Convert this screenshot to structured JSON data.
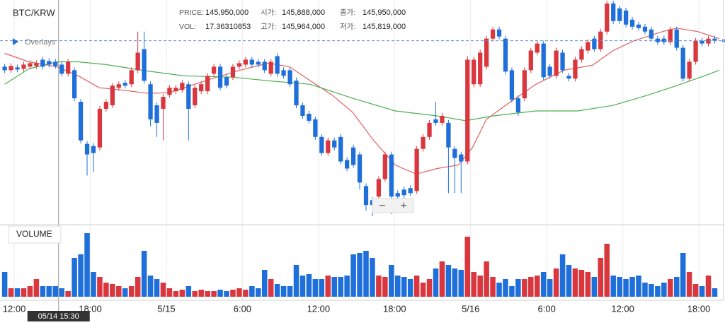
{
  "chart_data": {
    "type": "candlestick",
    "title": "BTC/KRW",
    "legend_label": "Overlays",
    "volume_label": "VOLUME",
    "zoom_labels": [
      "−",
      "+"
    ],
    "info": [
      {
        "label": "PRICE:",
        "value": "145,950,000"
      },
      {
        "label": "시가:",
        "value": "145,888,000"
      },
      {
        "label": "종가:",
        "value": "145,950,000"
      },
      {
        "label": "VOL:",
        "value": "17.36310853"
      },
      {
        "label": "고가:",
        "value": "145,964,000"
      },
      {
        "label": "저가:",
        "value": "145,819,000"
      }
    ],
    "up_color": "#d9363e",
    "down_color": "#1e6fd9",
    "xlim": [
      -0.74,
      113.4
    ],
    "ylim": [
      0,
      320
    ],
    "volume_ylim": [
      0,
      95
    ],
    "xticks": [
      {
        "value": 1.5,
        "label": "12:00"
      },
      {
        "value": 13.5,
        "label": "18:00"
      },
      {
        "value": 25.5,
        "label": "5/15"
      },
      {
        "value": 37.5,
        "label": "6:00"
      },
      {
        "value": 49.5,
        "label": "12:00"
      },
      {
        "value": 61.5,
        "label": "18:00"
      },
      {
        "value": 73.5,
        "label": "5/16"
      },
      {
        "value": 85.5,
        "label": "6:00"
      },
      {
        "value": 97.5,
        "label": "12:00"
      },
      {
        "value": 109.5,
        "label": "18:00"
      }
    ],
    "crosshair": {
      "value": 8.5,
      "label": "05/14 15:30"
    },
    "open": [
      225,
      220,
      224,
      222,
      225,
      226,
      235,
      233,
      232,
      228,
      215,
      220,
      175,
      115,
      112,
      110,
      165,
      170,
      195,
      202,
      200,
      220,
      250,
      200,
      170,
      165,
      185,
      190,
      192,
      200,
      170,
      190,
      190,
      215,
      225,
      210,
      210,
      225,
      228,
      235,
      232,
      232,
      215,
      240,
      220,
      220,
      205,
      170,
      158,
      150,
      125,
      102,
      120,
      125,
      92,
      110,
      100,
      55,
      35,
      40,
      65,
      100,
      45,
      50,
      52,
      48,
      108,
      125,
      150,
      145,
      145,
      108,
      100,
      90,
      200,
      200,
      225,
      265,
      278,
      265,
      220,
      180,
      180,
      220,
      245,
      258,
      225,
      212,
      245,
      212,
      208,
      235,
      248,
      265,
      250,
      275,
      315,
      308,
      305,
      292,
      285,
      282,
      278,
      265,
      265,
      260,
      278,
      252,
      208,
      232,
      262,
      258,
      265
    ],
    "high": [
      229,
      230,
      228,
      232,
      234,
      234,
      239,
      237,
      236,
      232,
      236,
      224,
      179,
      119,
      116,
      169,
      179,
      202,
      204,
      206,
      224,
      275,
      275,
      204,
      174,
      186,
      199,
      199,
      206,
      204,
      199,
      204,
      216,
      229,
      229,
      214,
      229,
      234,
      239,
      239,
      236,
      236,
      236,
      244,
      224,
      224,
      209,
      174,
      162,
      154,
      129,
      124,
      124,
      129,
      96,
      114,
      104,
      59,
      39,
      69,
      104,
      104,
      49,
      54,
      56,
      112,
      129,
      149,
      175,
      159,
      149,
      112,
      104,
      240,
      239,
      249,
      269,
      282,
      282,
      269,
      224,
      184,
      224,
      252,
      262,
      262,
      229,
      252,
      249,
      216,
      239,
      254,
      264,
      269,
      279,
      319,
      319,
      312,
      309,
      296,
      289,
      286,
      282,
      269,
      269,
      282,
      282,
      256,
      236,
      266,
      266,
      269,
      269
    ],
    "low": [
      216,
      216,
      217,
      218,
      221,
      222,
      221,
      224,
      222,
      211,
      211,
      176,
      116,
      70,
      75,
      106,
      161,
      166,
      191,
      194,
      196,
      216,
      201,
      140,
      125,
      120,
      181,
      186,
      188,
      120,
      166,
      186,
      186,
      211,
      191,
      194,
      206,
      221,
      224,
      224,
      224,
      216,
      211,
      211,
      208,
      196,
      166,
      151,
      144,
      121,
      98,
      98,
      106,
      86,
      76,
      81,
      50,
      20,
      12,
      36,
      61,
      15,
      36,
      38,
      41,
      44,
      104,
      121,
      141,
      141,
      45,
      45,
      45,
      86,
      196,
      196,
      221,
      261,
      264,
      214,
      174,
      155,
      176,
      216,
      241,
      206,
      208,
      208,
      216,
      204,
      204,
      231,
      244,
      246,
      246,
      271,
      286,
      286,
      281,
      278,
      276,
      271,
      261,
      256,
      256,
      256,
      248,
      204,
      204,
      228,
      254,
      254,
      258
    ],
    "close": [
      220,
      226,
      221,
      228,
      230,
      230,
      225,
      228,
      226,
      215,
      232,
      180,
      120,
      100,
      102,
      165,
      175,
      198,
      200,
      198,
      220,
      245,
      205,
      150,
      145,
      182,
      195,
      195,
      202,
      165,
      195,
      200,
      212,
      225,
      195,
      198,
      225,
      230,
      235,
      228,
      228,
      220,
      232,
      215,
      212,
      200,
      170,
      155,
      148,
      125,
      102,
      120,
      110,
      90,
      80,
      85,
      60,
      28,
      28,
      65,
      100,
      40,
      40,
      42,
      45,
      108,
      125,
      145,
      145,
      155,
      110,
      95,
      90,
      235,
      235,
      245,
      265,
      278,
      268,
      218,
      178,
      160,
      220,
      248,
      258,
      210,
      212,
      248,
      220,
      208,
      235,
      250,
      260,
      250,
      275,
      315,
      290,
      290,
      285,
      282,
      280,
      275,
      265,
      260,
      260,
      278,
      252,
      208,
      232,
      262,
      258,
      265,
      262
    ],
    "volume": [
      35,
      12,
      12,
      12,
      15,
      25,
      15,
      15,
      15,
      12,
      8,
      55,
      60,
      90,
      35,
      28,
      20,
      18,
      15,
      12,
      15,
      28,
      65,
      30,
      25,
      20,
      12,
      8,
      10,
      15,
      8,
      10,
      8,
      8,
      10,
      8,
      10,
      12,
      10,
      15,
      12,
      38,
      25,
      18,
      15,
      15,
      45,
      30,
      32,
      25,
      25,
      30,
      28,
      28,
      30,
      60,
      62,
      65,
      55,
      30,
      28,
      45,
      30,
      28,
      25,
      30,
      20,
      25,
      40,
      50,
      45,
      40,
      38,
      85,
      35,
      30,
      50,
      28,
      20,
      25,
      15,
      25,
      25,
      28,
      30,
      35,
      25,
      40,
      60,
      45,
      40,
      38,
      35,
      28,
      55,
      75,
      30,
      28,
      25,
      28,
      30,
      20,
      18,
      15,
      20,
      25,
      28,
      62,
      35,
      18,
      15,
      30,
      12
    ],
    "overlays": [
      {
        "color": "#e06060",
        "x": [
          0,
          3.8,
          8.2,
          11.6,
          14.9,
          18.2,
          22.7,
          26,
          29.3,
          32.7,
          37.1,
          41.6,
          44.9,
          48.2,
          51.6,
          54.9,
          58.2,
          61.6,
          64.9,
          68.2,
          71.6,
          73.8,
          76,
          79.3,
          83.8,
          88.2,
          92.7,
          96,
          99.3,
          103.8,
          106,
          109.3,
          112.7
        ],
        "values": [
          244,
          232,
          225,
          212,
          195,
          192,
          187,
          188,
          198,
          208,
          220,
          230,
          225,
          205,
          185,
          160,
          120,
          85,
          72,
          80,
          85,
          110,
          150,
          172,
          200,
          220,
          227,
          248,
          262,
          275,
          280,
          275,
          265
        ]
      },
      {
        "color": "#4cb050",
        "x": [
          0,
          3.8,
          8.2,
          11.6,
          16,
          21.6,
          28.2,
          36,
          41.6,
          48.2,
          54.9,
          61.6,
          68.2,
          72.7,
          77.1,
          83.8,
          90.4,
          96,
          101.6,
          106,
          110.4,
          112.7
        ],
        "values": [
          200,
          222,
          232,
          232,
          228,
          220,
          212,
          210,
          205,
          200,
          180,
          162,
          155,
          148,
          155,
          162,
          162,
          170,
          185,
          198,
          212,
          220
        ]
      }
    ]
  }
}
